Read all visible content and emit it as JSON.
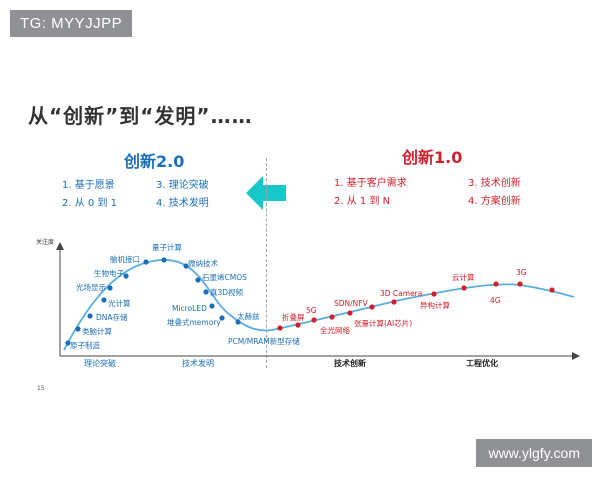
{
  "top_tag": "TG: MYYJJPP",
  "title": "从“创新”到“发明”……",
  "left_section": {
    "heading": "创新2.0",
    "items": [
      "1. 基于愿景",
      "3. 理论突破",
      "2. 从 0 到 1",
      "4. 技术发明"
    ]
  },
  "right_section": {
    "heading": "创新1.0",
    "items": [
      "1. 基于客户需求",
      "3. 技术创新",
      "2. 从 1 到 N",
      "4. 方案创新"
    ]
  },
  "diagram": {
    "y_axis_label": "关注度",
    "x_axis_labels": [
      "理论突破",
      "技术发明",
      "技术创新",
      "工程优化"
    ],
    "left_curve_points": [
      "原子制造",
      "类脑计算",
      "DNA存储",
      "光计算",
      "光场显示",
      "生物电子",
      "脑机接口",
      "量子计算",
      "微纳技术",
      "石墨烯CMOS",
      "真3D视频",
      "MicroLED",
      "堆叠式memory",
      "太赫兹",
      "PCM/MRAM新型存储"
    ],
    "right_curve_points": [
      "折叠屏",
      "5G",
      "全光网络",
      "SDN/NFV",
      "张量计算(AI芯片)",
      "3D Camera",
      "异构计算",
      "云计算",
      "4G",
      "3G"
    ]
  },
  "colors": {
    "blue": "#1b6fb8",
    "red": "#d0202c",
    "curve": "#5aaee0",
    "arrow": "#16c8c8"
  },
  "page_number": "15",
  "footer_watermark": "www.ylgfy.com"
}
